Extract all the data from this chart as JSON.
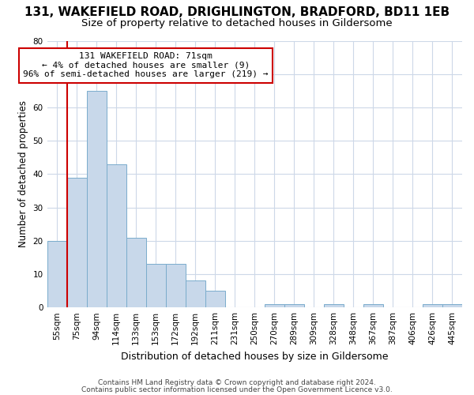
{
  "title1": "131, WAKEFIELD ROAD, DRIGHLINGTON, BRADFORD, BD11 1EB",
  "title2": "Size of property relative to detached houses in Gildersome",
  "xlabel": "Distribution of detached houses by size in Gildersome",
  "ylabel": "Number of detached properties",
  "categories": [
    "55sqm",
    "75sqm",
    "94sqm",
    "114sqm",
    "133sqm",
    "153sqm",
    "172sqm",
    "192sqm",
    "211sqm",
    "231sqm",
    "250sqm",
    "270sqm",
    "289sqm",
    "309sqm",
    "328sqm",
    "348sqm",
    "367sqm",
    "387sqm",
    "406sqm",
    "426sqm",
    "445sqm"
  ],
  "values": [
    20,
    39,
    65,
    43,
    21,
    13,
    13,
    8,
    5,
    0,
    0,
    1,
    1,
    0,
    1,
    0,
    1,
    0,
    0,
    1,
    1
  ],
  "bar_color": "#c8d8ea",
  "bar_edge_color": "#7aaccc",
  "vline_color": "#cc0000",
  "annotation_line1": "131 WAKEFIELD ROAD: 71sqm",
  "annotation_line2": "← 4% of detached houses are smaller (9)",
  "annotation_line3": "96% of semi-detached houses are larger (219) →",
  "annotation_box_color": "#ffffff",
  "annotation_box_edge": "#cc0000",
  "footer1": "Contains HM Land Registry data © Crown copyright and database right 2024.",
  "footer2": "Contains public sector information licensed under the Open Government Licence v3.0.",
  "ylim": [
    0,
    80
  ],
  "yticks": [
    0,
    10,
    20,
    30,
    40,
    50,
    60,
    70,
    80
  ],
  "bg_color": "#ffffff",
  "grid_color": "#cdd8e8",
  "title1_fontsize": 11,
  "title2_fontsize": 9.5,
  "xlabel_fontsize": 9,
  "ylabel_fontsize": 8.5,
  "tick_fontsize": 7.5,
  "annotation_fontsize": 8,
  "footer_fontsize": 6.5
}
